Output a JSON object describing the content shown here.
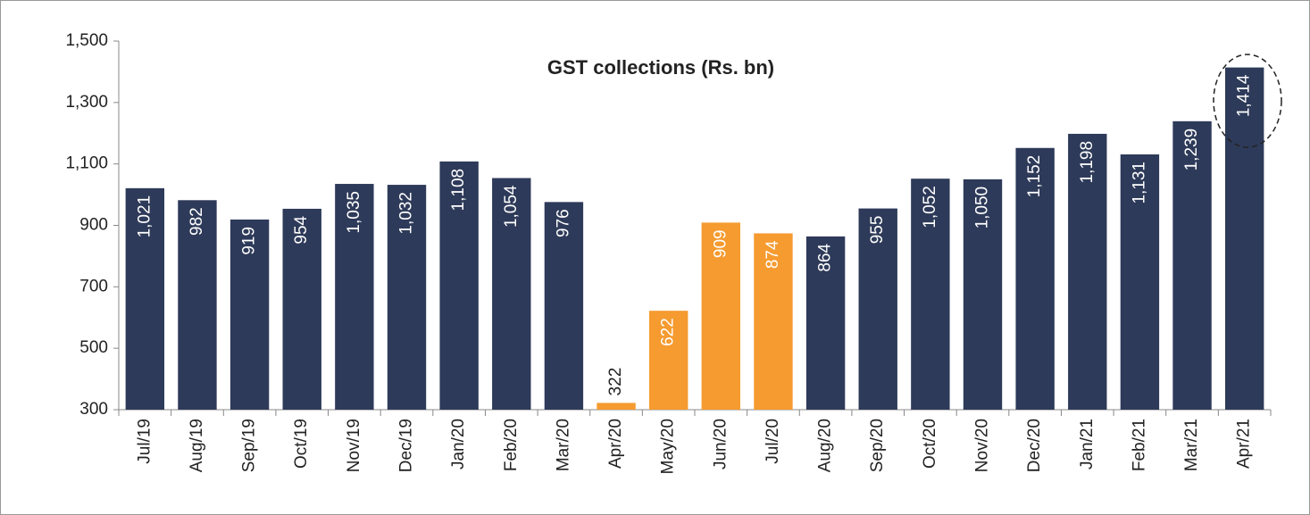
{
  "chart_data": {
    "type": "bar",
    "title": "GST collections (Rs. bn)",
    "categories": [
      "Jul/19",
      "Aug/19",
      "Sep/19",
      "Oct/19",
      "Nov/19",
      "Dec/19",
      "Jan/20",
      "Feb/20",
      "Mar/20",
      "Apr/20",
      "May/20",
      "Jun/20",
      "Jul/20",
      "Aug/20",
      "Sep/20",
      "Oct/20",
      "Nov/20",
      "Dec/20",
      "Jan/21",
      "Feb/21",
      "Mar/21",
      "Apr/21"
    ],
    "values": [
      1021,
      982,
      919,
      954,
      1035,
      1032,
      1108,
      1054,
      976,
      322,
      622,
      909,
      874,
      864,
      955,
      1052,
      1050,
      1152,
      1198,
      1131,
      1239,
      1414
    ],
    "value_labels": [
      "1,021",
      "982",
      "919",
      "954",
      "1,035",
      "1,032",
      "1,108",
      "1,054",
      "976",
      "322",
      "622",
      "909",
      "874",
      "864",
      "955",
      "1,052",
      "1,050",
      "1,152",
      "1,198",
      "1,131",
      "1,239",
      "1,414"
    ],
    "colors": [
      "#2e3a59",
      "#2e3a59",
      "#2e3a59",
      "#2e3a59",
      "#2e3a59",
      "#2e3a59",
      "#2e3a59",
      "#2e3a59",
      "#2e3a59",
      "#f59b30",
      "#f59b30",
      "#f59b30",
      "#f59b30",
      "#2e3a59",
      "#2e3a59",
      "#2e3a59",
      "#2e3a59",
      "#2e3a59",
      "#2e3a59",
      "#2e3a59",
      "#2e3a59",
      "#2e3a59"
    ],
    "ylim": [
      300,
      1500
    ],
    "yticks": [
      300,
      500,
      700,
      900,
      {
        "value": 1100,
        "label": "1,100"
      },
      {
        "value": 1300,
        "label": "1,300"
      },
      {
        "value": 1500,
        "label": "1,500"
      }
    ],
    "grid": false
  }
}
